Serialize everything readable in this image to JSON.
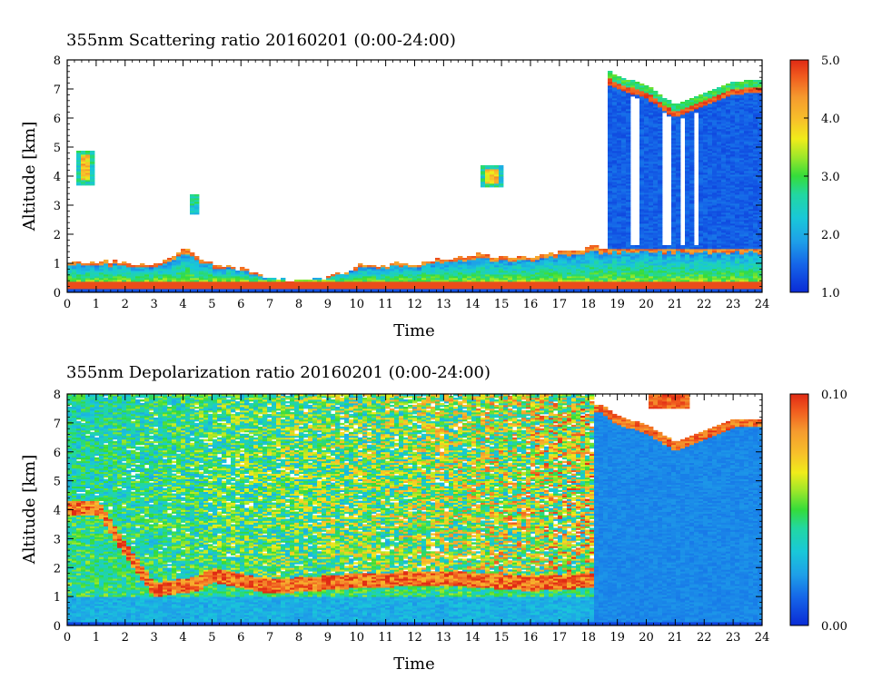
{
  "chart_data": [
    {
      "type": "heatmap",
      "title": "355nm Scattering ratio  20160201 (0:00-24:00)",
      "xlabel": "Time",
      "ylabel": "Altitude [km]",
      "xlim": [
        0,
        24
      ],
      "ylim": [
        0,
        8
      ],
      "x_ticks": [
        "0",
        "1",
        "2",
        "3",
        "4",
        "5",
        "6",
        "7",
        "8",
        "9",
        "10",
        "11",
        "12",
        "13",
        "14",
        "15",
        "16",
        "17",
        "18",
        "19",
        "20",
        "21",
        "22",
        "23",
        "24"
      ],
      "y_ticks": [
        "0",
        "1",
        "2",
        "3",
        "4",
        "5",
        "6",
        "7",
        "8"
      ],
      "colorbar": {
        "range": [
          1.0,
          5.0
        ],
        "tick_labels": [
          "1.0",
          "2.0",
          "3.0",
          "4.0",
          "5.0"
        ],
        "tick_values": [
          1.0,
          2.0,
          3.0,
          4.0,
          5.0
        ]
      },
      "features": {
        "surface_layer_top_km": 0.4,
        "boundary_layer_top_km": [
          [
            0,
            1.0
          ],
          [
            2,
            1.05
          ],
          [
            3,
            0.9
          ],
          [
            4,
            1.5
          ],
          [
            5,
            1.0
          ],
          [
            6,
            0.8
          ],
          [
            7,
            0.45
          ],
          [
            9,
            0.5
          ],
          [
            10,
            0.9
          ],
          [
            12,
            1.0
          ],
          [
            14,
            1.3
          ],
          [
            16,
            1.2
          ],
          [
            18,
            1.55
          ]
        ],
        "high_cloud_base_km": [
          [
            18.5,
            7.5
          ],
          [
            19,
            7.2
          ],
          [
            20,
            6.9
          ],
          [
            21,
            6.2
          ],
          [
            22,
            6.6
          ],
          [
            23,
            7.0
          ],
          [
            24,
            7.1
          ]
        ],
        "isolated_clouds": [
          {
            "t": [
              0.3,
              1.0
            ],
            "alt": [
              3.7,
              4.9
            ]
          },
          {
            "t": [
              4.2,
              4.5
            ],
            "alt": [
              2.7,
              3.4
            ]
          },
          {
            "t": [
              14.3,
              15.1
            ],
            "alt": [
              3.6,
              4.4
            ]
          }
        ]
      }
    },
    {
      "type": "heatmap",
      "title": "355nm Depolarization ratio  20160201 (0:00-24:00)",
      "xlabel": "Time",
      "ylabel": "Altitude [km]",
      "xlim": [
        0,
        24
      ],
      "ylim": [
        0,
        8
      ],
      "x_ticks": [
        "0",
        "1",
        "2",
        "3",
        "4",
        "5",
        "6",
        "7",
        "8",
        "9",
        "10",
        "11",
        "12",
        "13",
        "14",
        "15",
        "16",
        "17",
        "18",
        "19",
        "20",
        "21",
        "22",
        "23",
        "24"
      ],
      "y_ticks": [
        "0",
        "1",
        "2",
        "3",
        "4",
        "5",
        "6",
        "7",
        "8"
      ],
      "colorbar": {
        "range": [
          0.0,
          0.1
        ],
        "tick_labels": [
          "0.00",
          "0.10"
        ],
        "tick_values": [
          0.0,
          0.1
        ]
      },
      "features": {
        "noisy_region_end_hour": 18.2,
        "smooth_low_depol_region": {
          "t": [
            18.2,
            24
          ],
          "value": 0.018
        },
        "high_depol_layer": [
          [
            1.1,
            3.8
          ],
          [
            2.0,
            2.4
          ],
          [
            3.0,
            1.0
          ],
          [
            4.5,
            1.2
          ],
          [
            5.0,
            1.5
          ],
          [
            7.0,
            1.1
          ],
          [
            10,
            1.3
          ],
          [
            13,
            1.4
          ],
          [
            16,
            1.2
          ],
          [
            18,
            1.3
          ]
        ],
        "cloud_top_km": [
          [
            18.5,
            7.5
          ],
          [
            19,
            7.1
          ],
          [
            20,
            6.8
          ],
          [
            21,
            6.2
          ],
          [
            22,
            6.6
          ],
          [
            23,
            7.0
          ],
          [
            24,
            7.0
          ]
        ]
      }
    }
  ]
}
